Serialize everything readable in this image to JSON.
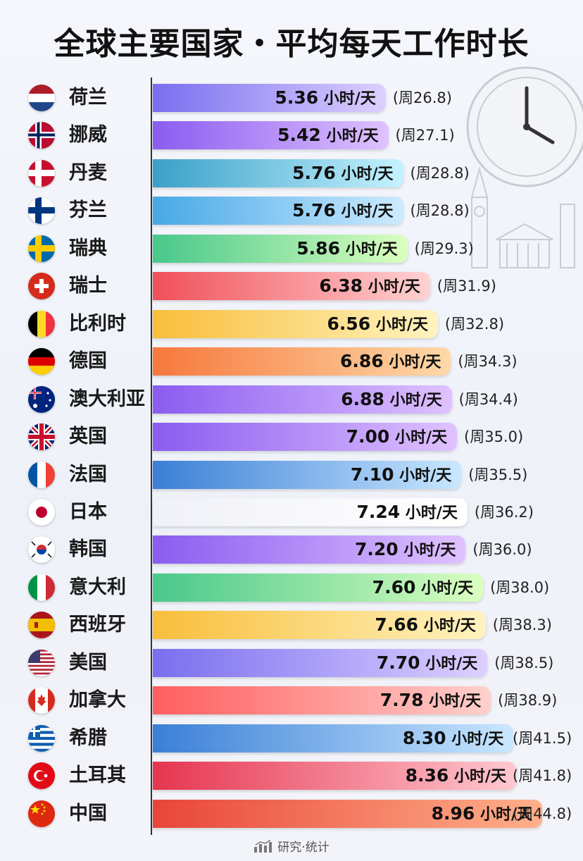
{
  "title": "全球主要国家・平均每天工作时长",
  "footer": {
    "text": "研究·统计",
    "icon": "chart-icon"
  },
  "colors": {
    "purple": [
      "#7a6ef0",
      "#ddd0ff"
    ],
    "violet": [
      "#8a5cf0",
      "#e0c2ff"
    ],
    "teal": [
      "#3aa0c8",
      "#c5f2ff"
    ],
    "skyblue": [
      "#47a8e6",
      "#cdebff"
    ],
    "green": [
      "#48c88a",
      "#dbffc0"
    ],
    "red": [
      "#f0505a",
      "#ffd2d2"
    ],
    "yellow": [
      "#f8be3a",
      "#fff3c0"
    ],
    "orange": [
      "#f6783c",
      "#ffd9a8"
    ],
    "white": [
      "#f0f1f7",
      "#ffffff"
    ],
    "blue": [
      "#3a7fd6",
      "#c9e7ff"
    ],
    "coral": [
      "#ff5e5e",
      "#ffd0cc"
    ],
    "crimson": [
      "#e63550",
      "#ffc8d0"
    ],
    "redorange": [
      "#e8453a",
      "#ffb08a"
    ]
  },
  "chart_data": {
    "type": "bar",
    "orientation": "horizontal",
    "title": "全球主要国家・平均每天工作时长",
    "unit_label": "小时/天",
    "categories": [
      "荷兰",
      "挪威",
      "丹麦",
      "芬兰",
      "瑞典",
      "瑞士",
      "比利时",
      "德国",
      "澳大利亚",
      "英国",
      "法国",
      "日本",
      "韩国",
      "意大利",
      "西班牙",
      "美国",
      "加拿大",
      "希腊",
      "土耳其",
      "中国"
    ],
    "values": [
      5.36,
      5.42,
      5.76,
      5.76,
      5.86,
      6.38,
      6.56,
      6.86,
      6.88,
      7.0,
      7.1,
      7.24,
      7.2,
      7.6,
      7.66,
      7.7,
      7.78,
      8.3,
      8.36,
      8.96
    ],
    "value_labels": [
      "5.36",
      "5.42",
      "5.76",
      "5.76",
      "5.86",
      "6.38",
      "6.56",
      "6.86",
      "6.88",
      "7.00",
      "7.10",
      "7.24",
      "7.20",
      "7.60",
      "7.66",
      "7.70",
      "7.78",
      "8.30",
      "8.36",
      "8.96"
    ],
    "weekly_labels": [
      "(周26.8)",
      "(周27.1)",
      "(周28.8)",
      "(周28.8)",
      "(周29.3)",
      "(周31.9)",
      "(周32.8)",
      "(周34.3)",
      "(周34.4)",
      "(周35.0)",
      "(周35.5)",
      "(周36.2)",
      "(周36.0)",
      "(周38.0)",
      "(周38.3)",
      "(周38.5)",
      "(周38.9)",
      "(周41.5)",
      "(周41.8)",
      "(周44.8)"
    ],
    "bar_colors": [
      "purple",
      "violet",
      "teal",
      "skyblue",
      "green",
      "red",
      "yellow",
      "orange",
      "violet",
      "violet",
      "blue",
      "white",
      "violet",
      "green",
      "yellow",
      "purple",
      "coral",
      "blue",
      "crimson",
      "redorange"
    ],
    "flags": [
      "netherlands-flag",
      "norway-flag",
      "denmark-flag",
      "finland-flag",
      "sweden-flag",
      "switzerland-flag",
      "belgium-flag",
      "germany-flag",
      "australia-flag",
      "uk-flag",
      "france-flag",
      "japan-flag",
      "korea-flag",
      "italy-flag",
      "spain-flag",
      "usa-flag",
      "canada-flag",
      "greece-flag",
      "turkey-flag",
      "china-flag"
    ],
    "grid": false,
    "legend": "none"
  }
}
